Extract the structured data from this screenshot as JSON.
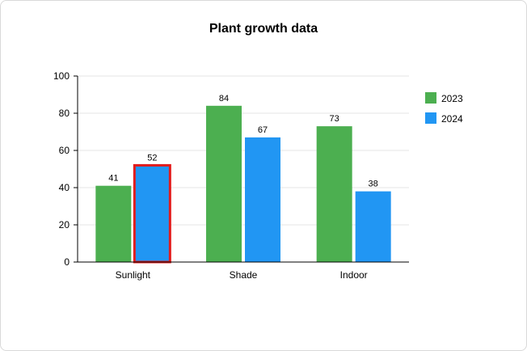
{
  "chart_data": {
    "type": "bar",
    "title": "Plant growth data",
    "xlabel": "",
    "ylabel": "",
    "categories": [
      "Sunlight",
      "Shade",
      "Indoor"
    ],
    "series": [
      {
        "name": "2023",
        "values": [
          41,
          84,
          73
        ],
        "color": "#4caf50"
      },
      {
        "name": "2024",
        "values": [
          52,
          67,
          38
        ],
        "color": "#2196f3"
      }
    ],
    "ylim": [
      0,
      100
    ],
    "yticks": [
      0,
      20,
      40,
      60,
      80,
      100
    ],
    "grid": true,
    "legend": "right",
    "highlight": {
      "category": "Sunlight",
      "series": "2024",
      "color": "#e31b1b"
    }
  }
}
